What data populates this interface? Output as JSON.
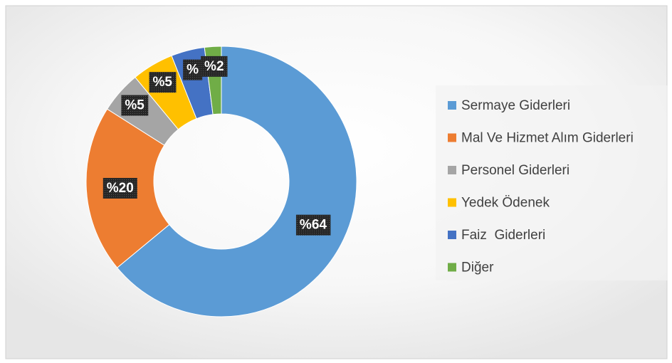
{
  "chart_data": {
    "type": "pie",
    "categories": [
      "Sermaye Giderleri",
      "Mal Ve Hizmet Alım Giderleri",
      "Personel Giderleri",
      "Yedek Ödenek",
      "Faiz  Giderleri",
      "Diğer"
    ],
    "values": [
      64,
      20,
      5,
      5,
      4,
      2
    ],
    "value_labels": [
      "%64",
      "%20",
      "%5",
      "%5",
      "%",
      "%2"
    ],
    "colors": [
      "#5b9bd5",
      "#ed7d31",
      "#a5a5a5",
      "#ffc000",
      "#4472c4",
      "#70ad47"
    ],
    "legend": "right"
  }
}
